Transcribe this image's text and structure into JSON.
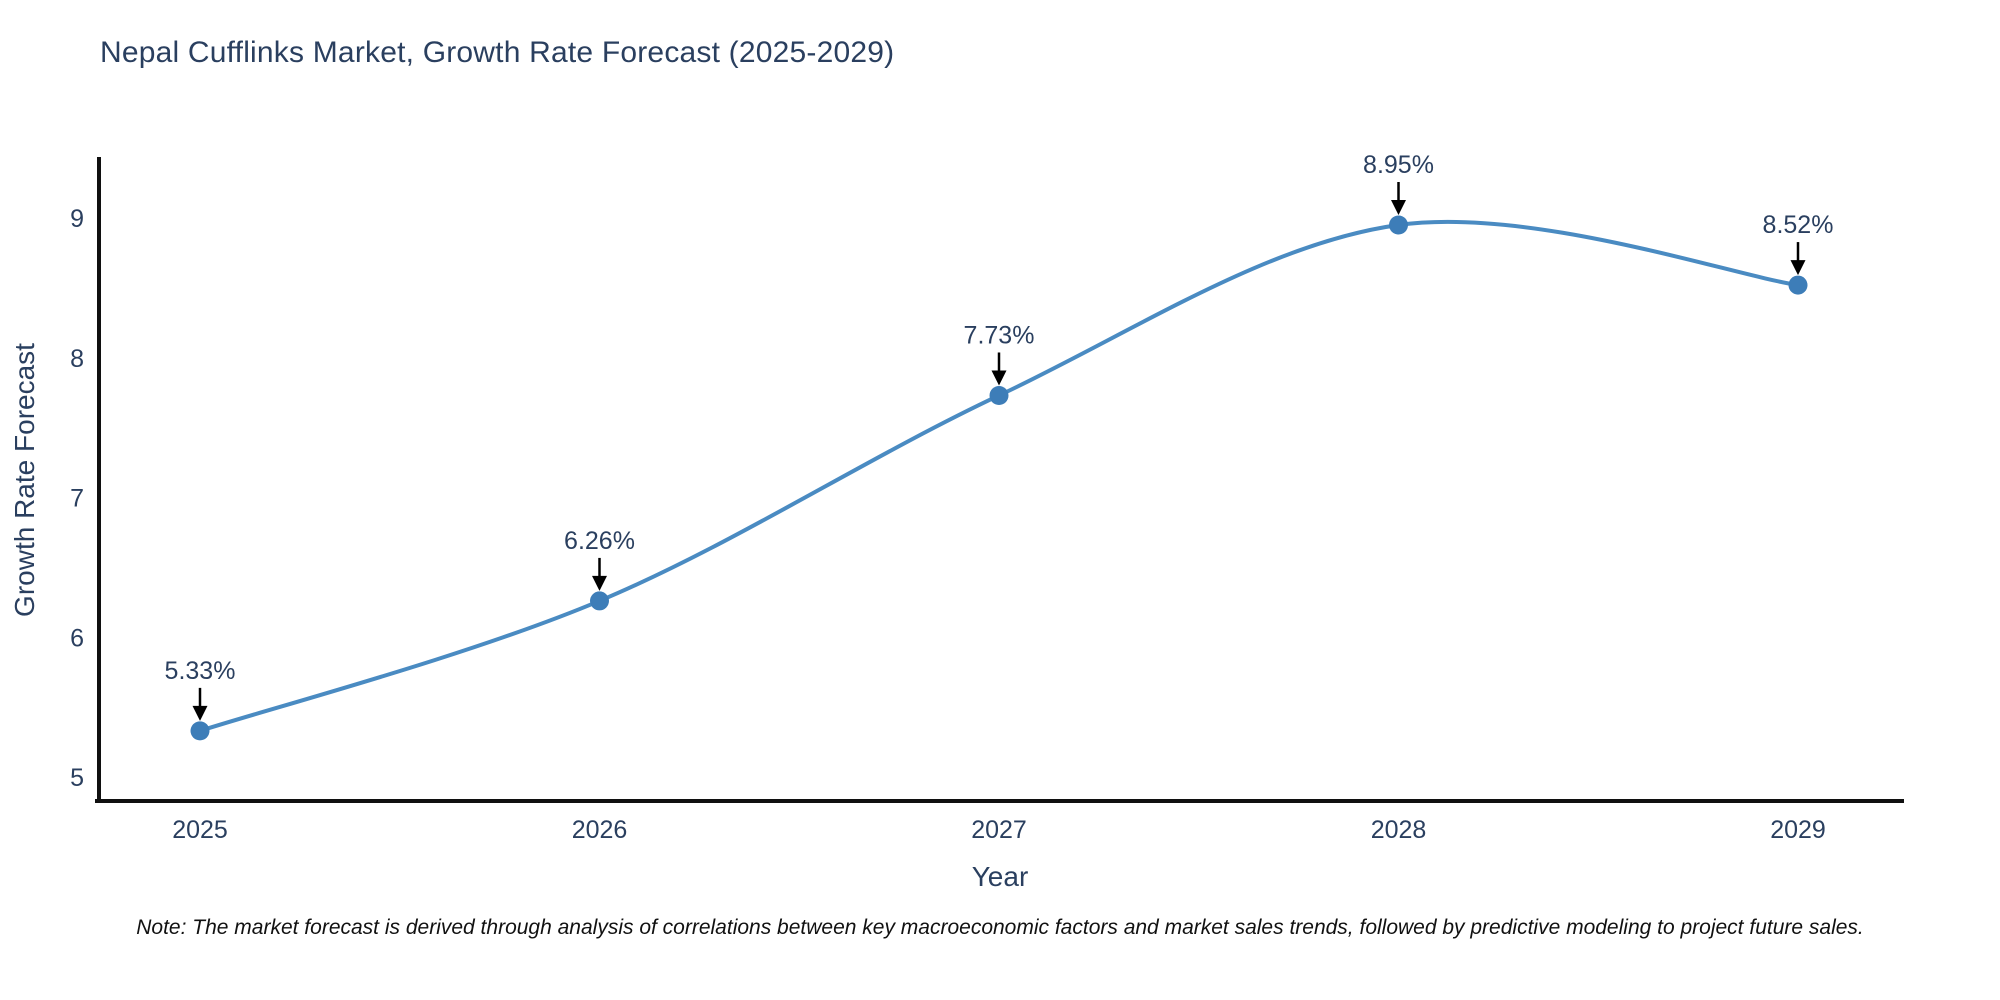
{
  "chart_data": {
    "type": "line",
    "title": "Nepal Cufflinks Market, Growth Rate Forecast (2025-2029)",
    "xlabel": "Year",
    "ylabel": "Growth Rate Forecast",
    "x": [
      2025,
      2026,
      2027,
      2028,
      2029
    ],
    "y": [
      5.33,
      6.26,
      7.73,
      8.95,
      8.52
    ],
    "point_labels": [
      "5.33%",
      "6.26%",
      "7.73%",
      "8.95%",
      "8.52%"
    ],
    "xticks": [
      "2025",
      "2026",
      "2027",
      "2028",
      "2029"
    ],
    "yticks": [
      "5",
      "6",
      "7",
      "8",
      "9"
    ],
    "ylim": [
      5,
      9
    ],
    "line_shape": "spline",
    "grid": false,
    "legend": false,
    "colors": {
      "line": "#4a8bc2",
      "marker": "#3d7db8",
      "text": "#2a3f5f",
      "axis": "#101010",
      "annotation_arrow": "#000000",
      "note_text": "#111111",
      "background": "#ffffff"
    }
  },
  "note": {
    "text": "Note: The market forecast is derived through analysis of correlations between key macroeconomic factors and market sales trends, followed by predictive modeling to project future sales."
  }
}
